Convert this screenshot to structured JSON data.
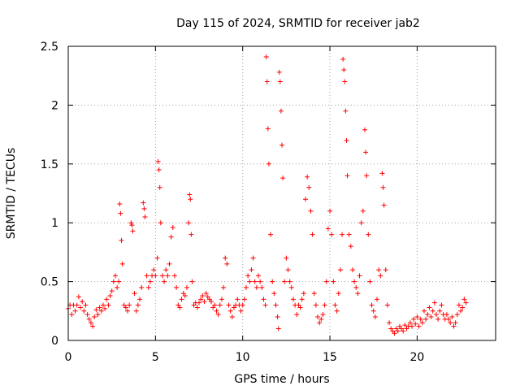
{
  "chart_data": {
    "type": "scatter",
    "title": "Day 115 of 2024, SRMTID for receiver jab2",
    "xlabel": "GPS time / hours",
    "ylabel": "SRMTID / TECUs",
    "xlim": [
      0,
      24.5
    ],
    "ylim": [
      0,
      2.5
    ],
    "grid": true,
    "marker": "+",
    "color": "#ff0000",
    "x_ticks": [
      0,
      5,
      10,
      15,
      20
    ],
    "x_tick_labels": [
      "0",
      "5",
      "10",
      "15",
      "20"
    ],
    "y_ticks": [
      0,
      0.5,
      1,
      1.5,
      2,
      2.5
    ],
    "y_tick_labels": [
      "0",
      "0.5",
      "1",
      "1.5",
      "2",
      "2.5"
    ],
    "series": [
      {
        "name": "SRMTID",
        "points": [
          [
            0.0,
            0.27
          ],
          [
            0.1,
            0.3
          ],
          [
            0.2,
            0.22
          ],
          [
            0.3,
            0.3
          ],
          [
            0.4,
            0.25
          ],
          [
            0.5,
            0.3
          ],
          [
            0.6,
            0.37
          ],
          [
            0.7,
            0.28
          ],
          [
            0.8,
            0.33
          ],
          [
            0.9,
            0.25
          ],
          [
            1.0,
            0.3
          ],
          [
            1.1,
            0.22
          ],
          [
            1.2,
            0.18
          ],
          [
            1.3,
            0.15
          ],
          [
            1.4,
            0.12
          ],
          [
            1.5,
            0.2
          ],
          [
            1.6,
            0.26
          ],
          [
            1.7,
            0.22
          ],
          [
            1.8,
            0.28
          ],
          [
            1.9,
            0.25
          ],
          [
            2.0,
            0.3
          ],
          [
            2.1,
            0.27
          ],
          [
            2.2,
            0.35
          ],
          [
            2.3,
            0.3
          ],
          [
            2.4,
            0.38
          ],
          [
            2.5,
            0.42
          ],
          [
            2.6,
            0.5
          ],
          [
            2.7,
            0.55
          ],
          [
            2.8,
            0.45
          ],
          [
            2.9,
            0.5
          ],
          [
            2.95,
            1.16
          ],
          [
            3.0,
            1.08
          ],
          [
            3.05,
            0.85
          ],
          [
            3.1,
            0.65
          ],
          [
            3.2,
            0.3
          ],
          [
            3.3,
            0.28
          ],
          [
            3.4,
            0.25
          ],
          [
            3.5,
            0.3
          ],
          [
            3.6,
            1.0
          ],
          [
            3.65,
            0.98
          ],
          [
            3.7,
            0.93
          ],
          [
            3.8,
            0.4
          ],
          [
            3.9,
            0.25
          ],
          [
            4.0,
            0.3
          ],
          [
            4.1,
            0.35
          ],
          [
            4.2,
            0.45
          ],
          [
            4.3,
            1.17
          ],
          [
            4.35,
            1.12
          ],
          [
            4.4,
            1.05
          ],
          [
            4.5,
            0.55
          ],
          [
            4.6,
            0.45
          ],
          [
            4.7,
            0.5
          ],
          [
            4.8,
            0.55
          ],
          [
            4.9,
            0.6
          ],
          [
            5.0,
            0.55
          ],
          [
            5.1,
            0.7
          ],
          [
            5.15,
            1.52
          ],
          [
            5.2,
            1.45
          ],
          [
            5.25,
            1.3
          ],
          [
            5.3,
            1.0
          ],
          [
            5.4,
            0.55
          ],
          [
            5.5,
            0.5
          ],
          [
            5.6,
            0.6
          ],
          [
            5.7,
            0.55
          ],
          [
            5.8,
            0.65
          ],
          [
            5.9,
            0.88
          ],
          [
            6.0,
            0.96
          ],
          [
            6.1,
            0.55
          ],
          [
            6.2,
            0.45
          ],
          [
            6.3,
            0.3
          ],
          [
            6.4,
            0.28
          ],
          [
            6.5,
            0.35
          ],
          [
            6.6,
            0.4
          ],
          [
            6.7,
            0.38
          ],
          [
            6.8,
            0.45
          ],
          [
            6.9,
            1.0
          ],
          [
            6.95,
            1.24
          ],
          [
            7.0,
            1.2
          ],
          [
            7.05,
            0.9
          ],
          [
            7.1,
            0.5
          ],
          [
            7.2,
            0.3
          ],
          [
            7.3,
            0.32
          ],
          [
            7.4,
            0.28
          ],
          [
            7.5,
            0.32
          ],
          [
            7.6,
            0.35
          ],
          [
            7.7,
            0.38
          ],
          [
            7.8,
            0.33
          ],
          [
            7.9,
            0.4
          ],
          [
            8.0,
            0.37
          ],
          [
            8.1,
            0.35
          ],
          [
            8.2,
            0.33
          ],
          [
            8.3,
            0.28
          ],
          [
            8.4,
            0.3
          ],
          [
            8.5,
            0.25
          ],
          [
            8.6,
            0.22
          ],
          [
            8.7,
            0.3
          ],
          [
            8.8,
            0.35
          ],
          [
            8.9,
            0.45
          ],
          [
            9.0,
            0.7
          ],
          [
            9.1,
            0.65
          ],
          [
            9.2,
            0.3
          ],
          [
            9.3,
            0.25
          ],
          [
            9.4,
            0.2
          ],
          [
            9.5,
            0.28
          ],
          [
            9.6,
            0.3
          ],
          [
            9.7,
            0.35
          ],
          [
            9.8,
            0.3
          ],
          [
            9.9,
            0.25
          ],
          [
            10.0,
            0.3
          ],
          [
            10.1,
            0.35
          ],
          [
            10.2,
            0.45
          ],
          [
            10.3,
            0.55
          ],
          [
            10.4,
            0.5
          ],
          [
            10.5,
            0.6
          ],
          [
            10.6,
            0.7
          ],
          [
            10.7,
            0.5
          ],
          [
            10.8,
            0.45
          ],
          [
            10.9,
            0.55
          ],
          [
            11.0,
            0.5
          ],
          [
            11.1,
            0.45
          ],
          [
            11.2,
            0.35
          ],
          [
            11.3,
            0.3
          ],
          [
            11.35,
            2.41
          ],
          [
            11.4,
            2.2
          ],
          [
            11.45,
            1.8
          ],
          [
            11.5,
            1.5
          ],
          [
            11.6,
            0.9
          ],
          [
            11.7,
            0.5
          ],
          [
            11.8,
            0.4
          ],
          [
            11.9,
            0.3
          ],
          [
            12.0,
            0.2
          ],
          [
            12.05,
            0.1
          ],
          [
            12.1,
            2.28
          ],
          [
            12.15,
            2.2
          ],
          [
            12.2,
            1.95
          ],
          [
            12.25,
            1.66
          ],
          [
            12.3,
            1.38
          ],
          [
            12.4,
            0.5
          ],
          [
            12.5,
            0.7
          ],
          [
            12.6,
            0.6
          ],
          [
            12.7,
            0.5
          ],
          [
            12.8,
            0.45
          ],
          [
            12.9,
            0.35
          ],
          [
            13.0,
            0.3
          ],
          [
            13.1,
            0.22
          ],
          [
            13.2,
            0.3
          ],
          [
            13.3,
            0.28
          ],
          [
            13.4,
            0.35
          ],
          [
            13.5,
            0.4
          ],
          [
            13.6,
            1.2
          ],
          [
            13.7,
            1.39
          ],
          [
            13.8,
            1.3
          ],
          [
            13.9,
            1.1
          ],
          [
            14.0,
            0.9
          ],
          [
            14.1,
            0.4
          ],
          [
            14.2,
            0.3
          ],
          [
            14.3,
            0.2
          ],
          [
            14.4,
            0.15
          ],
          [
            14.5,
            0.18
          ],
          [
            14.6,
            0.22
          ],
          [
            14.7,
            0.3
          ],
          [
            14.8,
            0.5
          ],
          [
            14.9,
            0.95
          ],
          [
            15.0,
            1.1
          ],
          [
            15.1,
            0.9
          ],
          [
            15.2,
            0.5
          ],
          [
            15.3,
            0.3
          ],
          [
            15.4,
            0.25
          ],
          [
            15.5,
            0.4
          ],
          [
            15.6,
            0.6
          ],
          [
            15.7,
            0.9
          ],
          [
            15.75,
            2.39
          ],
          [
            15.8,
            2.3
          ],
          [
            15.85,
            2.2
          ],
          [
            15.9,
            1.95
          ],
          [
            15.95,
            1.7
          ],
          [
            16.0,
            1.4
          ],
          [
            16.1,
            0.9
          ],
          [
            16.2,
            0.8
          ],
          [
            16.3,
            0.6
          ],
          [
            16.4,
            0.5
          ],
          [
            16.5,
            0.45
          ],
          [
            16.6,
            0.4
          ],
          [
            16.7,
            0.55
          ],
          [
            16.8,
            1.0
          ],
          [
            16.9,
            1.1
          ],
          [
            17.0,
            1.79
          ],
          [
            17.05,
            1.6
          ],
          [
            17.1,
            1.4
          ],
          [
            17.2,
            0.9
          ],
          [
            17.3,
            0.5
          ],
          [
            17.4,
            0.3
          ],
          [
            17.5,
            0.25
          ],
          [
            17.6,
            0.2
          ],
          [
            17.7,
            0.35
          ],
          [
            17.8,
            0.6
          ],
          [
            17.9,
            0.55
          ],
          [
            18.0,
            1.42
          ],
          [
            18.05,
            1.3
          ],
          [
            18.1,
            1.15
          ],
          [
            18.2,
            0.6
          ],
          [
            18.3,
            0.3
          ],
          [
            18.4,
            0.15
          ],
          [
            18.5,
            0.1
          ],
          [
            18.6,
            0.08
          ],
          [
            18.7,
            0.06
          ],
          [
            18.8,
            0.1
          ],
          [
            18.9,
            0.08
          ],
          [
            19.0,
            0.12
          ],
          [
            19.1,
            0.1
          ],
          [
            19.2,
            0.08
          ],
          [
            19.3,
            0.13
          ],
          [
            19.4,
            0.1
          ],
          [
            19.5,
            0.12
          ],
          [
            19.6,
            0.15
          ],
          [
            19.7,
            0.12
          ],
          [
            19.8,
            0.18
          ],
          [
            19.9,
            0.14
          ],
          [
            20.0,
            0.2
          ],
          [
            20.1,
            0.12
          ],
          [
            20.2,
            0.18
          ],
          [
            20.3,
            0.15
          ],
          [
            20.4,
            0.25
          ],
          [
            20.5,
            0.18
          ],
          [
            20.6,
            0.22
          ],
          [
            20.7,
            0.28
          ],
          [
            20.8,
            0.2
          ],
          [
            20.9,
            0.25
          ],
          [
            21.0,
            0.32
          ],
          [
            21.1,
            0.22
          ],
          [
            21.2,
            0.18
          ],
          [
            21.3,
            0.25
          ],
          [
            21.4,
            0.3
          ],
          [
            21.5,
            0.22
          ],
          [
            21.6,
            0.18
          ],
          [
            21.7,
            0.22
          ],
          [
            21.8,
            0.18
          ],
          [
            21.9,
            0.15
          ],
          [
            22.0,
            0.2
          ],
          [
            22.1,
            0.12
          ],
          [
            22.2,
            0.15
          ],
          [
            22.3,
            0.22
          ],
          [
            22.4,
            0.3
          ],
          [
            22.5,
            0.25
          ],
          [
            22.6,
            0.28
          ],
          [
            22.7,
            0.35
          ],
          [
            22.8,
            0.32
          ]
        ]
      }
    ]
  }
}
